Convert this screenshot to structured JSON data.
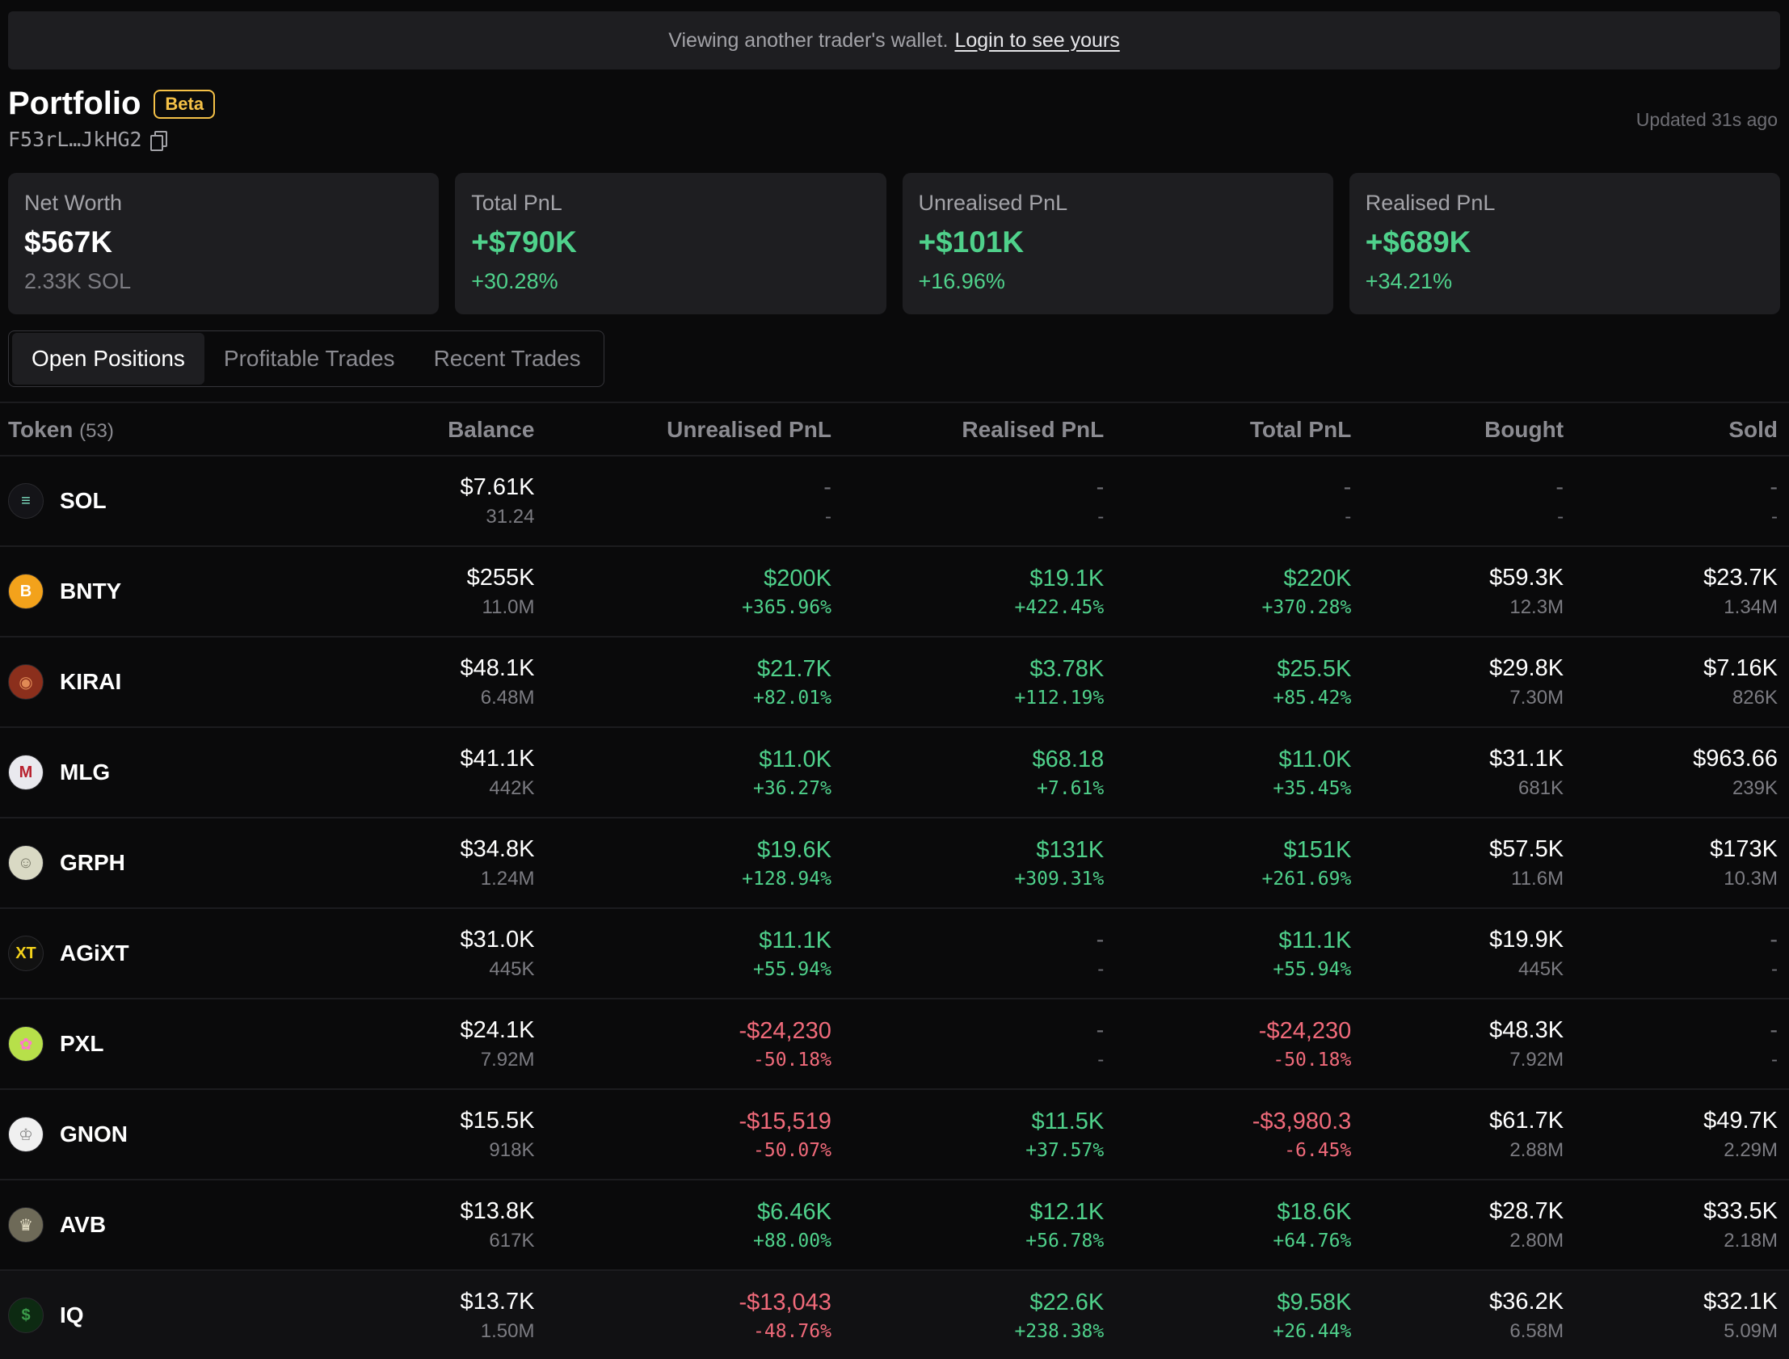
{
  "banner": {
    "text": "Viewing another trader's wallet.",
    "link": "Login to see yours"
  },
  "header": {
    "title": "Portfolio",
    "badge": "Beta",
    "wallet": "F53rL…JkHG2",
    "updated": "Updated 31s ago"
  },
  "cards": [
    {
      "label": "Net Worth",
      "value": "$567K",
      "sub": "2.33K SOL"
    },
    {
      "label": "Total PnL",
      "value": "+$790K",
      "sub": "+30.28%"
    },
    {
      "label": "Unrealised PnL",
      "value": "+$101K",
      "sub": "+16.96%"
    },
    {
      "label": "Realised PnL",
      "value": "+$689K",
      "sub": "+34.21%"
    }
  ],
  "tabs": [
    "Open Positions",
    "Profitable Trades",
    "Recent Trades"
  ],
  "table": {
    "headers": {
      "token": "Token",
      "count": "(53)",
      "balance": "Balance",
      "unrealised": "Unrealised PnL",
      "realised": "Realised PnL",
      "total": "Total PnL",
      "bought": "Bought",
      "sold": "Sold"
    },
    "rows": [
      {
        "symbol": "SOL",
        "logo": "sol-logo-icon",
        "logo_bg": "#141418",
        "balance": [
          "$7.61K",
          "31.24"
        ],
        "unrealised": [
          "-",
          "-"
        ],
        "realised": [
          "-",
          "-"
        ],
        "total": [
          "-",
          "-"
        ],
        "bought": [
          "-",
          "-"
        ],
        "sold": [
          "-",
          "-"
        ]
      },
      {
        "symbol": "BNTY",
        "logo": "bnty-logo-icon",
        "logo_bg": "#f3a21b",
        "balance": [
          "$255K",
          "11.0M"
        ],
        "unrealised": [
          "$200K",
          "+365.96%"
        ],
        "realised": [
          "$19.1K",
          "+422.45%"
        ],
        "total": [
          "$220K",
          "+370.28%"
        ],
        "bought": [
          "$59.3K",
          "12.3M"
        ],
        "sold": [
          "$23.7K",
          "1.34M"
        ]
      },
      {
        "symbol": "KIRAI",
        "logo": "kirai-logo-icon",
        "logo_bg": "#8b2f1c",
        "balance": [
          "$48.1K",
          "6.48M"
        ],
        "unrealised": [
          "$21.7K",
          "+82.01%"
        ],
        "realised": [
          "$3.78K",
          "+112.19%"
        ],
        "total": [
          "$25.5K",
          "+85.42%"
        ],
        "bought": [
          "$29.8K",
          "7.30M"
        ],
        "sold": [
          "$7.16K",
          "826K"
        ]
      },
      {
        "symbol": "MLG",
        "logo": "mlg-logo-icon",
        "logo_bg": "#e9e9ee",
        "balance": [
          "$41.1K",
          "442K"
        ],
        "unrealised": [
          "$11.0K",
          "+36.27%"
        ],
        "realised": [
          "$68.18",
          "+7.61%"
        ],
        "total": [
          "$11.0K",
          "+35.45%"
        ],
        "bought": [
          "$31.1K",
          "681K"
        ],
        "sold": [
          "$963.66",
          "239K"
        ]
      },
      {
        "symbol": "GRPH",
        "logo": "grph-logo-icon",
        "logo_bg": "#d9d9c4",
        "balance": [
          "$34.8K",
          "1.24M"
        ],
        "unrealised": [
          "$19.6K",
          "+128.94%"
        ],
        "realised": [
          "$131K",
          "+309.31%"
        ],
        "total": [
          "$151K",
          "+261.69%"
        ],
        "bought": [
          "$57.5K",
          "11.6M"
        ],
        "sold": [
          "$173K",
          "10.3M"
        ]
      },
      {
        "symbol": "AGiXT",
        "logo": "agixt-logo-icon",
        "logo_bg": "#111111",
        "balance": [
          "$31.0K",
          "445K"
        ],
        "unrealised": [
          "$11.1K",
          "+55.94%"
        ],
        "realised": [
          "-",
          "-"
        ],
        "total": [
          "$11.1K",
          "+55.94%"
        ],
        "bought": [
          "$19.9K",
          "445K"
        ],
        "sold": [
          "-",
          "-"
        ]
      },
      {
        "symbol": "PXL",
        "logo": "pxl-logo-icon",
        "logo_bg": "#b7e04a",
        "balance": [
          "$24.1K",
          "7.92M"
        ],
        "unrealised": [
          "-$24,230",
          "-50.18%"
        ],
        "realised": [
          "-",
          "-"
        ],
        "total": [
          "-$24,230",
          "-50.18%"
        ],
        "bought": [
          "$48.3K",
          "7.92M"
        ],
        "sold": [
          "-",
          "-"
        ]
      },
      {
        "symbol": "GNON",
        "logo": "gnon-logo-icon",
        "logo_bg": "#f0f0f0",
        "balance": [
          "$15.5K",
          "918K"
        ],
        "unrealised": [
          "-$15,519",
          "-50.07%"
        ],
        "realised": [
          "$11.5K",
          "+37.57%"
        ],
        "total": [
          "-$3,980.3",
          "-6.45%"
        ],
        "bought": [
          "$61.7K",
          "2.88M"
        ],
        "sold": [
          "$49.7K",
          "2.29M"
        ]
      },
      {
        "symbol": "AVB",
        "logo": "avb-logo-icon",
        "logo_bg": "#6e6a58",
        "balance": [
          "$13.8K",
          "617K"
        ],
        "unrealised": [
          "$6.46K",
          "+88.00%"
        ],
        "realised": [
          "$12.1K",
          "+56.78%"
        ],
        "total": [
          "$18.6K",
          "+64.76%"
        ],
        "bought": [
          "$28.7K",
          "2.80M"
        ],
        "sold": [
          "$33.5K",
          "2.18M"
        ]
      },
      {
        "symbol": "IQ",
        "logo": "iq-logo-icon",
        "logo_bg": "#0d2a12",
        "balance": [
          "$13.7K",
          "1.50M"
        ],
        "unrealised": [
          "-$13,043",
          "-48.76%"
        ],
        "realised": [
          "$22.6K",
          "+238.38%"
        ],
        "total": [
          "$9.58K",
          "+26.44%"
        ],
        "bought": [
          "$36.2K",
          "6.58M"
        ],
        "sold": [
          "$32.1K",
          "5.09M"
        ]
      }
    ]
  },
  "colors": {
    "positive": "#4fd18b",
    "negative": "#f06a7a",
    "beta": "#f5c147"
  }
}
